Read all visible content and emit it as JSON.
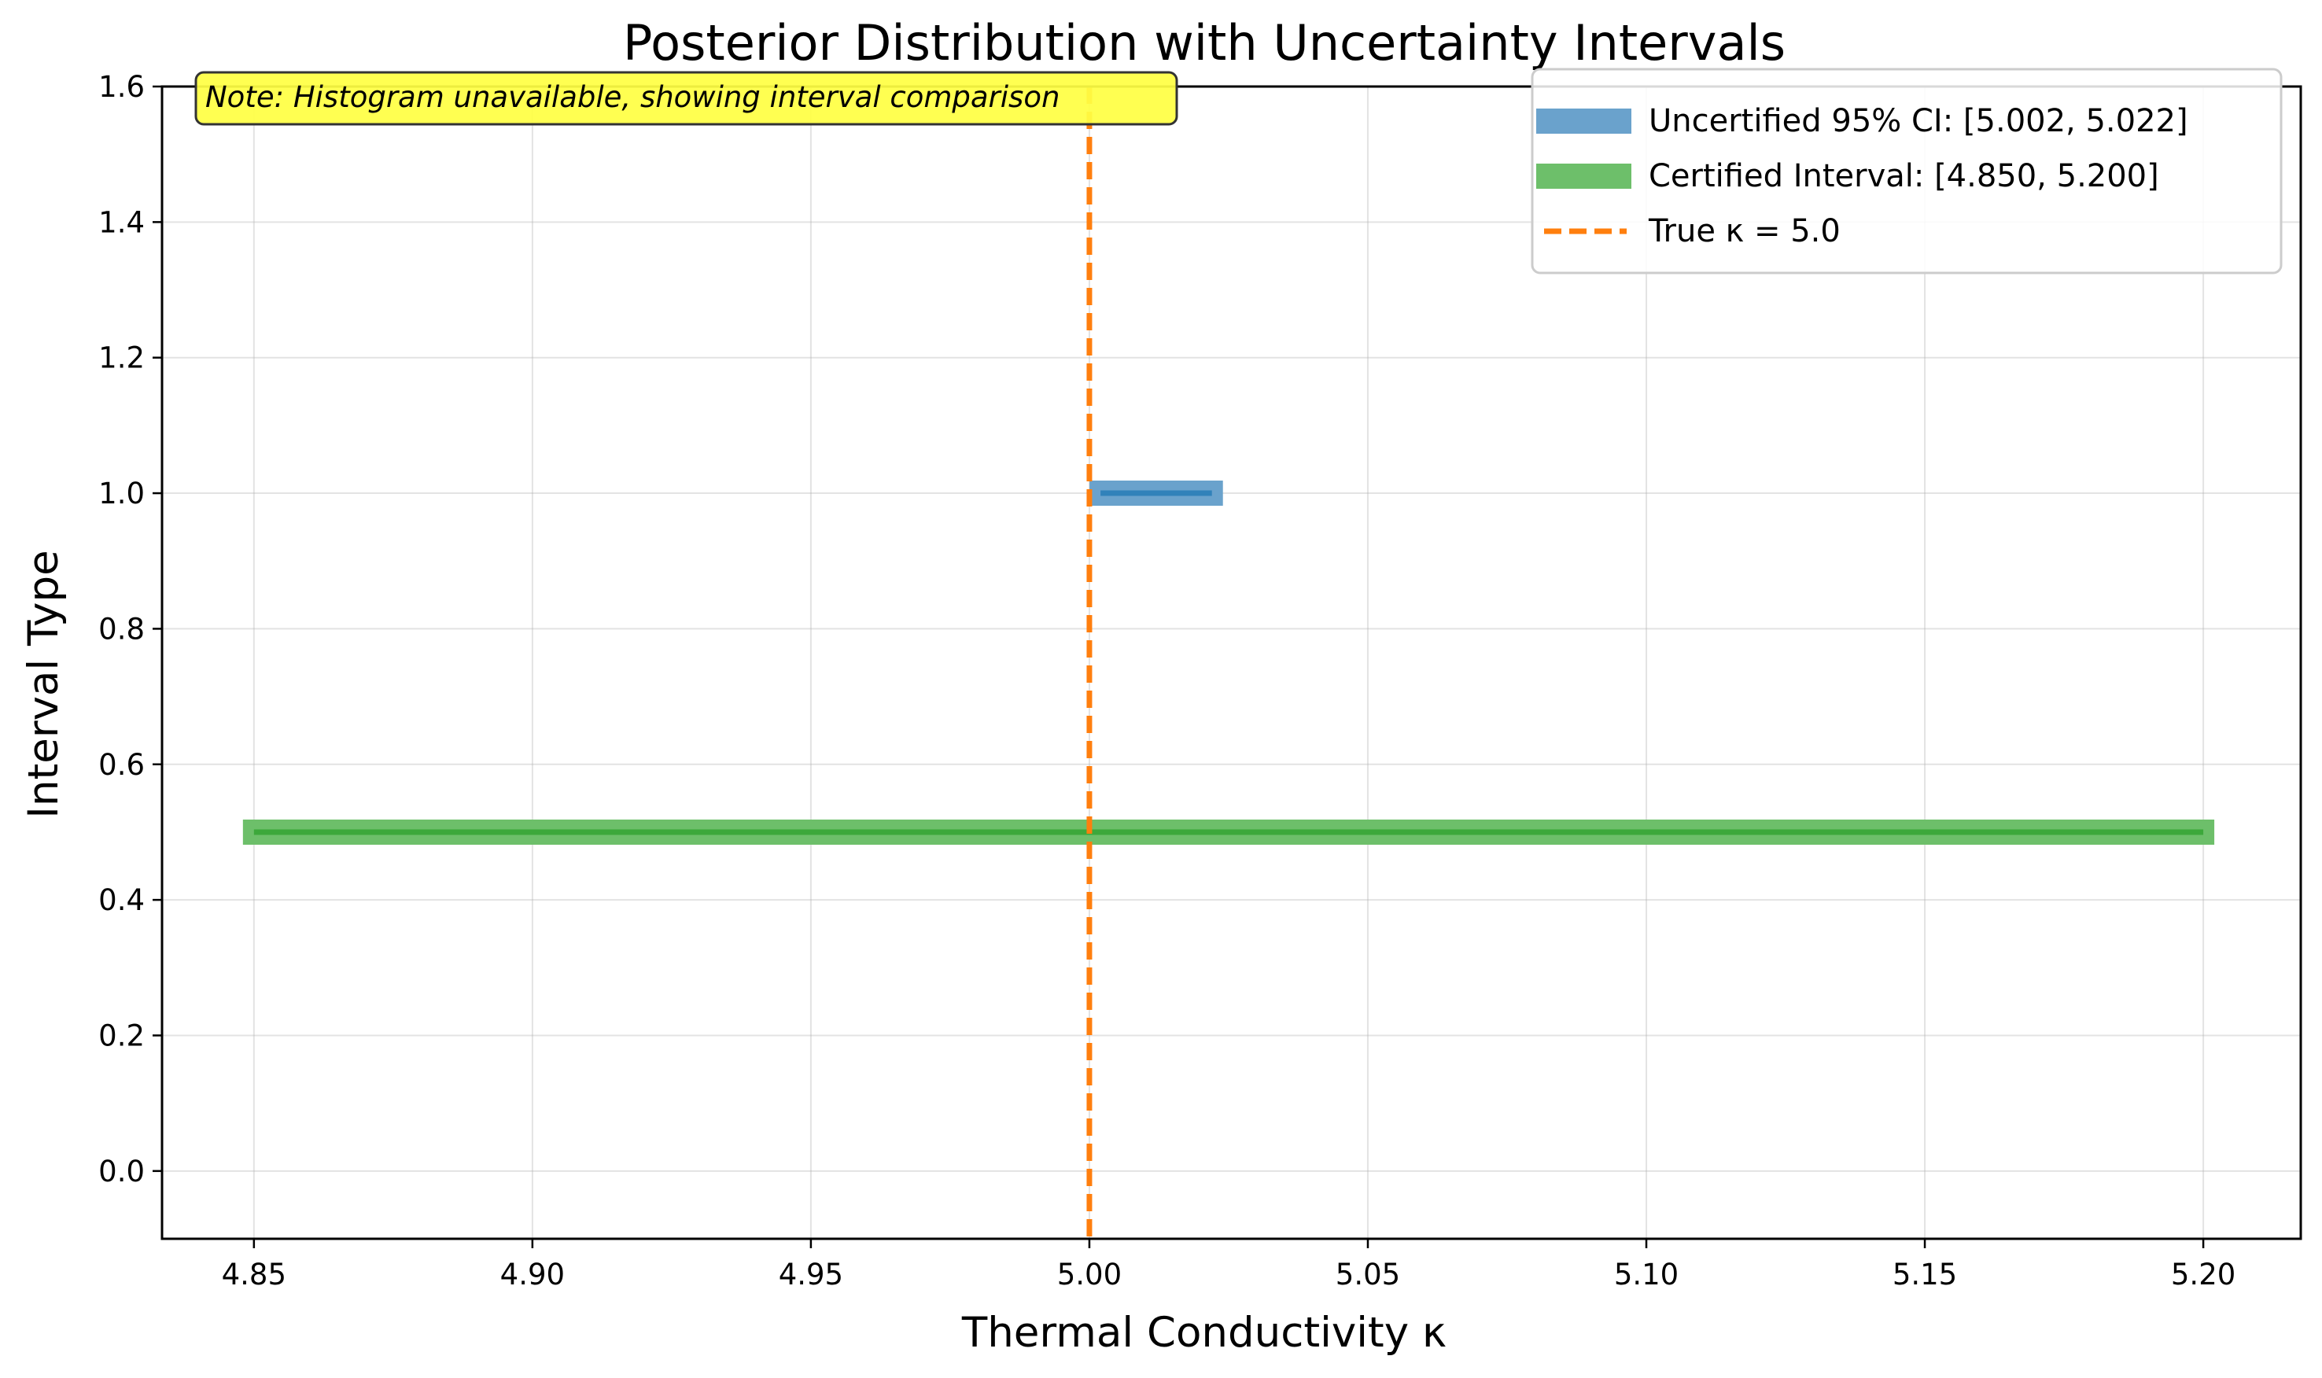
{
  "chart_data": {
    "type": "interval",
    "title": "Posterior Distribution with Uncertainty Intervals",
    "xlabel": "Thermal Conductivity κ",
    "ylabel": "Interval Type",
    "xlim": [
      4.8335,
      5.2175
    ],
    "ylim": [
      -0.1,
      1.6
    ],
    "xticks": [
      4.85,
      4.9,
      4.95,
      5.0,
      5.05,
      5.1,
      5.15,
      5.2
    ],
    "xtick_labels": [
      "4.85",
      "4.90",
      "4.95",
      "5.00",
      "5.05",
      "5.10",
      "5.15",
      "5.20"
    ],
    "yticks": [
      0.0,
      0.2,
      0.4,
      0.6,
      0.8,
      1.0,
      1.2,
      1.4,
      1.6
    ],
    "ytick_labels": [
      "0.0",
      "0.2",
      "0.4",
      "0.6",
      "0.8",
      "1.0",
      "1.2",
      "1.4",
      "1.6"
    ],
    "grid": true,
    "legend_position": "top-right",
    "annotation": "Note: Histogram unavailable, showing interval comparison",
    "series": [
      {
        "name": "Uncertified 95% CI: [5.002, 5.022]",
        "kind": "interval",
        "x_start": 5.002,
        "x_end": 5.022,
        "y": 1.0,
        "color": "#1f77b4",
        "band_color": "#6aa2cc"
      },
      {
        "name": "Certified Interval: [4.850, 5.200]",
        "kind": "interval",
        "x_start": 4.85,
        "x_end": 5.2,
        "y": 0.5,
        "color": "#2ca02c",
        "band_color": "#6dbf6a"
      },
      {
        "name": "True κ = 5.0",
        "kind": "vline",
        "x": 5.0,
        "color": "#ff7f0e",
        "linestyle": "dashed"
      }
    ]
  }
}
